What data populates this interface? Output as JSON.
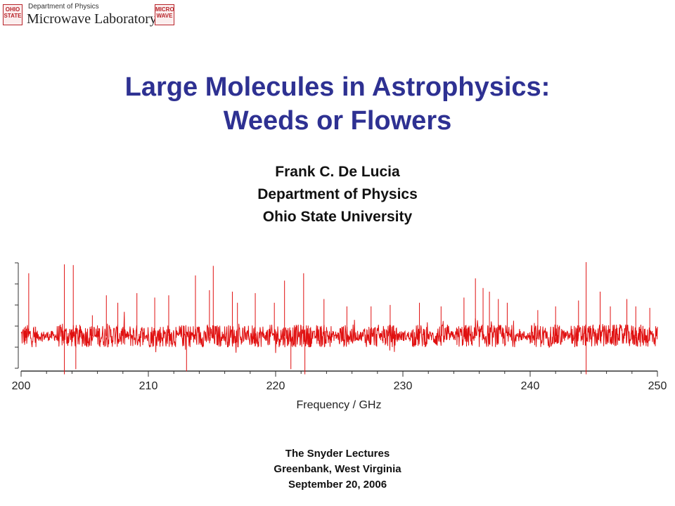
{
  "header": {
    "department": "Department of Physics",
    "lab": "Microwave Laboratory",
    "seal_left_lines": [
      "OHIO",
      "STATE"
    ],
    "seal_right_lines": [
      "MICRO",
      "WAVE"
    ]
  },
  "title": {
    "line1": "Large Molecules in Astrophysics:",
    "line2": "Weeds or Flowers"
  },
  "author": {
    "name": "Frank C. De Lucia",
    "department": "Department of Physics",
    "institution": "Ohio State University"
  },
  "footer": {
    "event": "The Snyder Lectures",
    "location": "Greenbank, West Virginia",
    "date": "September 20, 2006"
  },
  "colors": {
    "title": "#2e3192",
    "trace": "#e01010",
    "axis": "#333333"
  },
  "chart_data": {
    "type": "line",
    "xlabel": "Frequency / GHz",
    "ylabel": "",
    "xlim": [
      200,
      250
    ],
    "x_ticks": [
      200,
      210,
      220,
      230,
      240,
      250
    ],
    "y_ticks_count": 6,
    "grid": false,
    "series": [
      {
        "description_peaks_ghz": [
          {
            "x": 200.6,
            "y": 0.85
          },
          {
            "x": 203.4,
            "y": 0.97
          },
          {
            "x": 203.4,
            "y": -0.52
          },
          {
            "x": 204.1,
            "y": 0.96
          },
          {
            "x": 204.3,
            "y": -0.45
          },
          {
            "x": 205.6,
            "y": 0.28
          },
          {
            "x": 206.7,
            "y": 0.55
          },
          {
            "x": 207.6,
            "y": 0.45
          },
          {
            "x": 209.1,
            "y": 0.58
          },
          {
            "x": 210.5,
            "y": 0.52
          },
          {
            "x": 211.6,
            "y": 0.55
          },
          {
            "x": 213.0,
            "y": -0.48
          },
          {
            "x": 213.7,
            "y": 0.82
          },
          {
            "x": 214.8,
            "y": 0.62
          },
          {
            "x": 215.1,
            "y": 0.95
          },
          {
            "x": 216.6,
            "y": 0.6
          },
          {
            "x": 217.0,
            "y": 0.45
          },
          {
            "x": 218.4,
            "y": 0.58
          },
          {
            "x": 219.9,
            "y": 0.45
          },
          {
            "x": 220.7,
            "y": 0.75
          },
          {
            "x": 221.2,
            "y": -0.45
          },
          {
            "x": 222.2,
            "y": 0.85
          },
          {
            "x": 222.3,
            "y": -0.52
          },
          {
            "x": 223.8,
            "y": 0.5
          },
          {
            "x": 225.6,
            "y": 0.4
          },
          {
            "x": 227.5,
            "y": 0.4
          },
          {
            "x": 229.0,
            "y": 0.42
          },
          {
            "x": 231.3,
            "y": 0.45
          },
          {
            "x": 233.0,
            "y": 0.4
          },
          {
            "x": 234.8,
            "y": 0.52
          },
          {
            "x": 235.7,
            "y": 0.78
          },
          {
            "x": 236.3,
            "y": 0.65
          },
          {
            "x": 236.8,
            "y": 0.6
          },
          {
            "x": 237.5,
            "y": 0.5
          },
          {
            "x": 238.2,
            "y": 0.45
          },
          {
            "x": 240.6,
            "y": 0.35
          },
          {
            "x": 242.0,
            "y": 0.4
          },
          {
            "x": 243.8,
            "y": 0.48
          },
          {
            "x": 244.4,
            "y": 1.0
          },
          {
            "x": 244.4,
            "y": -0.52
          },
          {
            "x": 245.5,
            "y": 0.6
          },
          {
            "x": 246.3,
            "y": 0.4
          },
          {
            "x": 247.6,
            "y": 0.5
          },
          {
            "x": 248.3,
            "y": 0.4
          },
          {
            "x": 249.4,
            "y": 0.38
          }
        ],
        "noise_level": 0.07
      }
    ]
  }
}
